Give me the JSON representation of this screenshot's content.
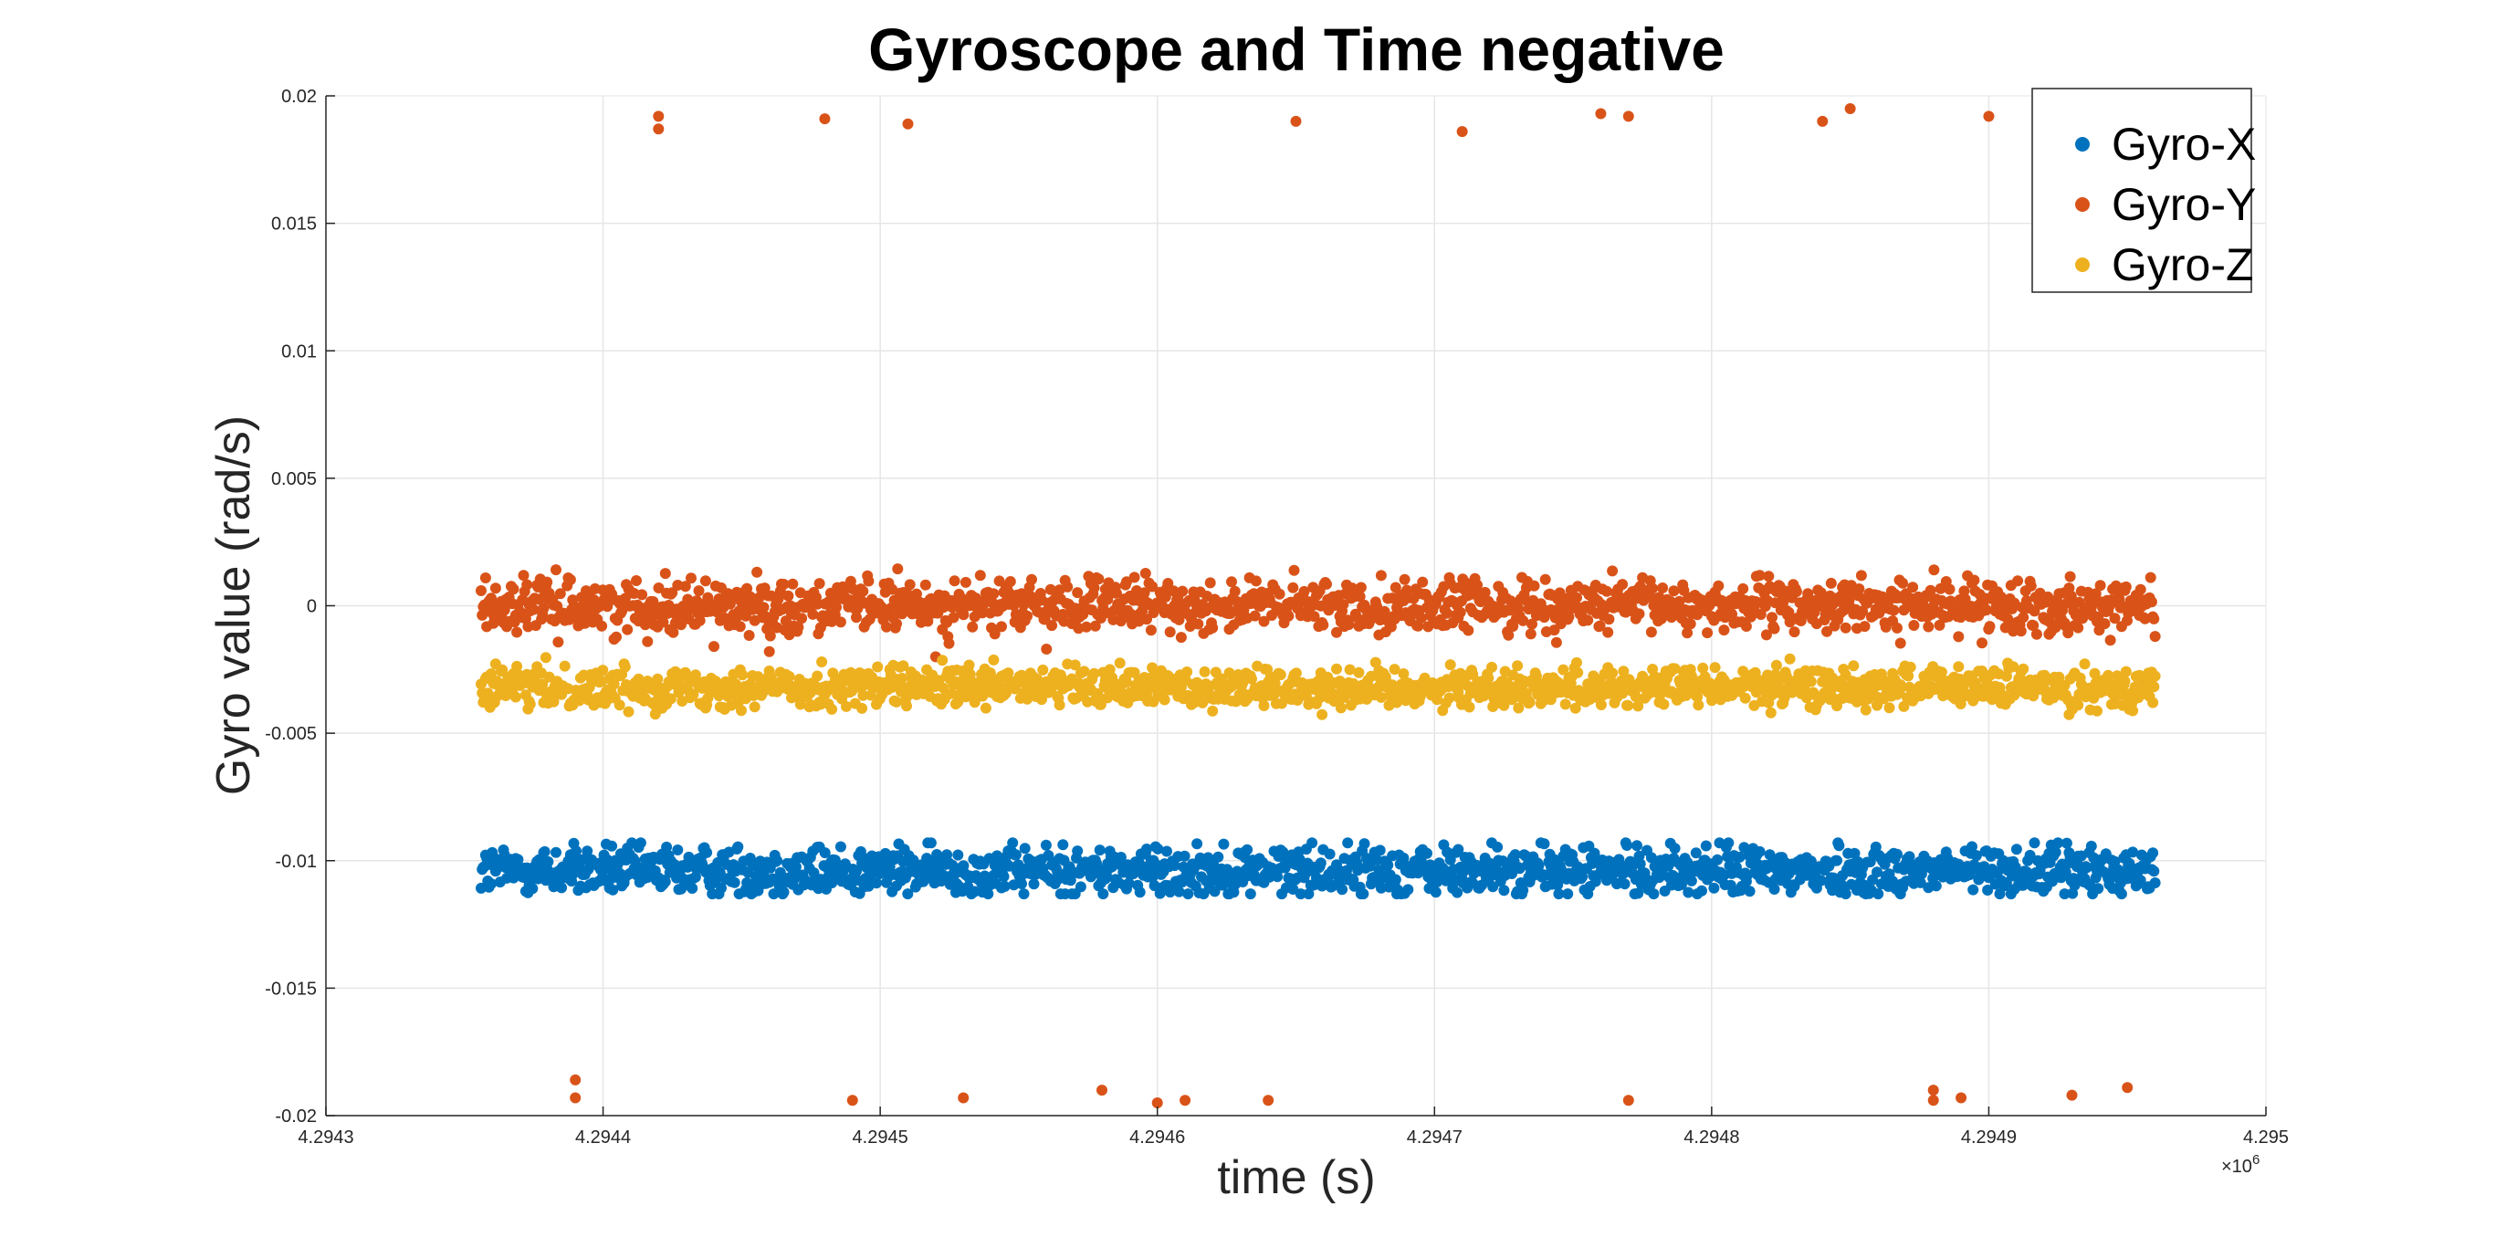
{
  "chart_data": {
    "type": "scatter",
    "title": "Gyroscope and Time negative",
    "xlabel": "time (s)",
    "ylabel": "Gyro value (rad/s)",
    "x_exponent_label": "×10",
    "x_exponent_power": "6",
    "xlim": [
      4.2943,
      4.295
    ],
    "ylim": [
      -0.02,
      0.02
    ],
    "x_ticks": [
      4.2943,
      4.2944,
      4.2945,
      4.2946,
      4.2947,
      4.2948,
      4.2949,
      4.295
    ],
    "x_tick_labels": [
      "4.2943",
      "4.2944",
      "4.2945",
      "4.2946",
      "4.2947",
      "4.2948",
      "4.2949",
      "4.295"
    ],
    "y_ticks": [
      -0.02,
      -0.015,
      -0.01,
      -0.005,
      0,
      0.005,
      0.01,
      0.015,
      0.02
    ],
    "y_tick_labels": [
      "-0.02",
      "-0.015",
      "-0.01",
      "-0.005",
      "0",
      "0.005",
      "0.01",
      "0.015",
      "0.02"
    ],
    "grid": true,
    "legend_position": "top-right",
    "x_data_range": [
      4.294356,
      4.29496
    ],
    "series": [
      {
        "name": "Gyro-X",
        "color": "#0072BD",
        "mean": -0.0104,
        "spread": 0.0005,
        "band": [
          -0.0113,
          -0.0093
        ]
      },
      {
        "name": "Gyro-Y",
        "color": "#D95319",
        "mean": 0.0,
        "spread": 0.0005,
        "band": [
          -0.0015,
          0.0016
        ],
        "outliers": [
          [
            4.29442,
            0.0187
          ],
          [
            4.29442,
            0.0192
          ],
          [
            4.29448,
            0.0191
          ],
          [
            4.29451,
            0.0189
          ],
          [
            4.29465,
            0.019
          ],
          [
            4.29471,
            0.0186
          ],
          [
            4.29476,
            0.0193
          ],
          [
            4.29477,
            0.0192
          ],
          [
            4.29484,
            0.019
          ],
          [
            4.29485,
            0.0195
          ],
          [
            4.2949,
            0.0192
          ],
          [
            4.29439,
            -0.0186
          ],
          [
            4.29439,
            -0.0193
          ],
          [
            4.29449,
            -0.0194
          ],
          [
            4.29453,
            -0.0193
          ],
          [
            4.29458,
            -0.019
          ],
          [
            4.2946,
            -0.0195
          ],
          [
            4.29461,
            -0.0194
          ],
          [
            4.29464,
            -0.0194
          ],
          [
            4.29477,
            -0.0194
          ],
          [
            4.29488,
            -0.019
          ],
          [
            4.29488,
            -0.0194
          ],
          [
            4.29489,
            -0.0193
          ],
          [
            4.29493,
            -0.0192
          ],
          [
            4.29495,
            -0.0189
          ],
          [
            4.29444,
            -0.0016
          ],
          [
            4.29446,
            -0.0018
          ],
          [
            4.29452,
            -0.002
          ],
          [
            4.29456,
            -0.0017
          ]
        ]
      },
      {
        "name": "Gyro-Z",
        "color": "#EDB120",
        "mean": -0.0032,
        "spread": 0.0004,
        "band": [
          -0.0044,
          -0.0018
        ]
      }
    ]
  }
}
